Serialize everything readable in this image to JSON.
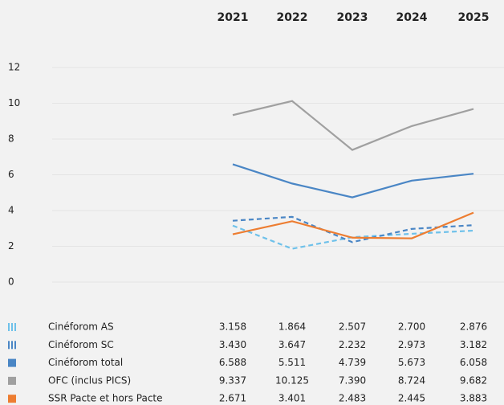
{
  "chart_data": {
    "type": "line",
    "categories": [
      "2021",
      "2022",
      "2023",
      "2024",
      "2025"
    ],
    "ylim": [
      0,
      12
    ],
    "yticks": [
      0,
      2,
      4,
      6,
      8,
      10,
      12
    ],
    "grid": true,
    "series": [
      {
        "name": "Cinéforom AS",
        "color": "#6ec1ea",
        "style": "dashed",
        "values": [
          3.158,
          1.864,
          2.507,
          2.7,
          2.876
        ],
        "value_labels": [
          "3.158",
          "1.864",
          "2.507",
          "2.700",
          "2.876"
        ]
      },
      {
        "name": "Cinéforom SC",
        "color": "#4a86c5",
        "style": "dashed",
        "values": [
          3.43,
          3.647,
          2.232,
          2.973,
          3.182
        ],
        "value_labels": [
          "3.430",
          "3.647",
          "2.232",
          "2.973",
          "3.182"
        ]
      },
      {
        "name": "Cinéforom total",
        "color": "#4a86c5",
        "style": "solid",
        "values": [
          6.588,
          5.511,
          4.739,
          5.673,
          6.058
        ],
        "value_labels": [
          "6.588",
          "5.511",
          "4.739",
          "5.673",
          "6.058"
        ]
      },
      {
        "name": "OFC (inclus PICS)",
        "color": "#a0a0a0",
        "style": "solid",
        "values": [
          9.337,
          10.125,
          7.39,
          8.724,
          9.682
        ],
        "value_labels": [
          "9.337",
          "10.125",
          "7.390",
          "8.724",
          "9.682"
        ]
      },
      {
        "name": "SSR Pacte et hors Pacte",
        "color": "#ed7d31",
        "style": "solid",
        "values": [
          2.671,
          3.401,
          2.483,
          2.445,
          3.883
        ],
        "value_labels": [
          "2.671",
          "3.401",
          "2.483",
          "2.445",
          "3.883"
        ]
      }
    ]
  }
}
